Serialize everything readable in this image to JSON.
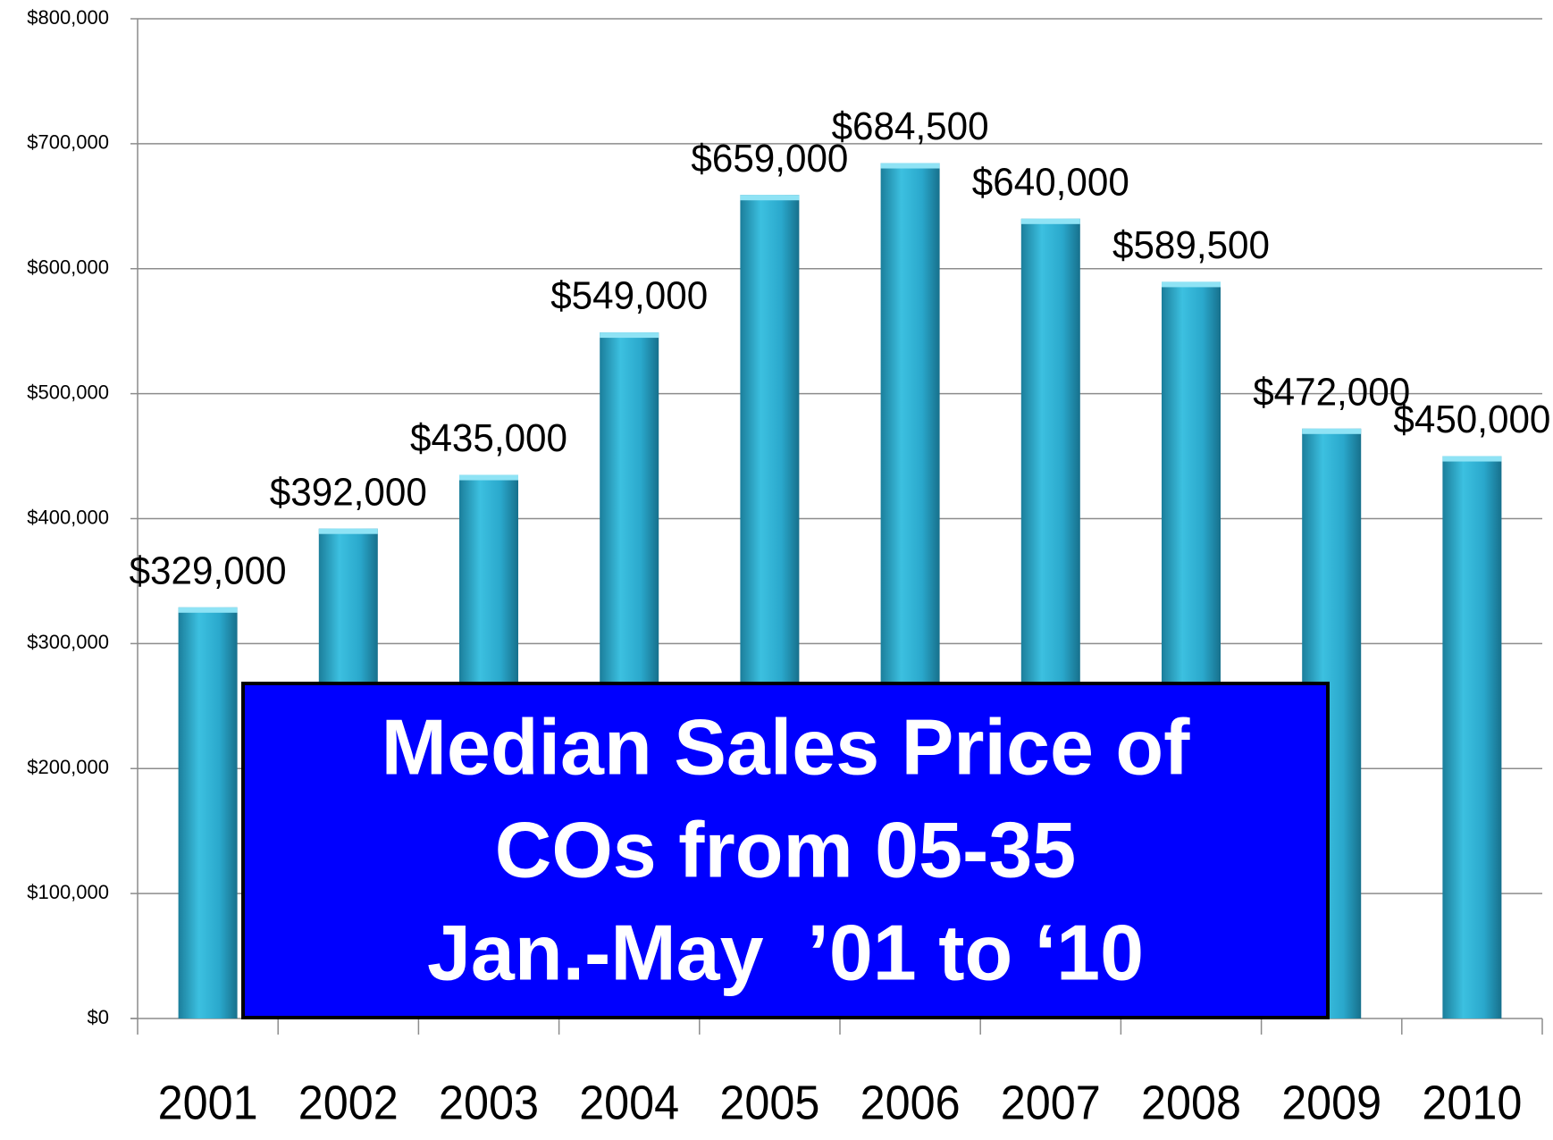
{
  "chart_data": {
    "type": "bar",
    "title": [
      "Median Sales Price of",
      "COs from 05-35",
      "Jan.-May  ’01 to ‘10"
    ],
    "categories": [
      "2001",
      "2002",
      "2003",
      "2004",
      "2005",
      "2006",
      "2007",
      "2008",
      "2009",
      "2010"
    ],
    "values": [
      329000,
      392000,
      435000,
      549000,
      659000,
      684500,
      640000,
      589500,
      472000,
      450000
    ],
    "value_labels": [
      "$329,000",
      "$392,000",
      "$435,000",
      "$549,000",
      "$659,000",
      "$684,500",
      "$640,000",
      "$589,500",
      "$472,000",
      "$450,000"
    ],
    "color": "#2fb3d6",
    "ylim": [
      0,
      800000
    ],
    "yticks": [
      {
        "value": 0,
        "label": "$0"
      },
      {
        "value": 100000,
        "label": "$100,000"
      },
      {
        "value": 200000,
        "label": "$200,000"
      },
      {
        "value": 300000,
        "label": "$300,000"
      },
      {
        "value": 400000,
        "label": "$400,000"
      },
      {
        "value": 500000,
        "label": "$500,000"
      },
      {
        "value": 600000,
        "label": "$600,000"
      },
      {
        "value": 700000,
        "label": "$700,000"
      },
      {
        "value": 800000,
        "label": "$800,000"
      }
    ],
    "grid": true
  }
}
